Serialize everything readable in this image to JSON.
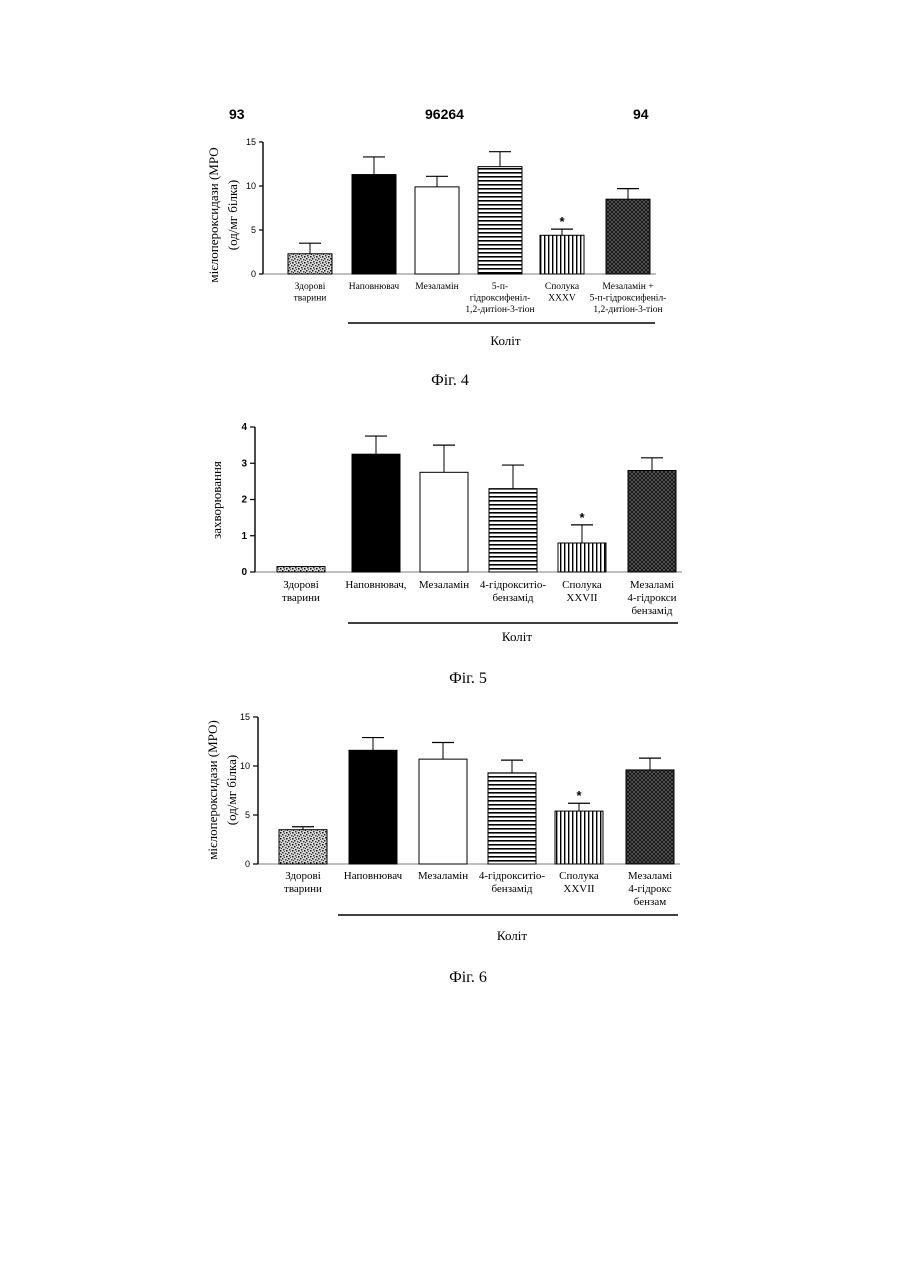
{
  "header": {
    "left": "93",
    "center": "96264",
    "right": "94"
  },
  "chart_data": [
    {
      "type": "bar",
      "caption": "Фіг. 4",
      "ylabel_lines": [
        "мієлопероксидази (МРО",
        "(од/мг білка)"
      ],
      "yticks": [
        "0",
        "5",
        "10",
        "15"
      ],
      "ylim": [
        0,
        15
      ],
      "group_label": "Коліт",
      "categories": [
        {
          "lines": [
            "Здорові",
            "тварини"
          ]
        },
        {
          "lines": [
            "Наповнювач"
          ]
        },
        {
          "lines": [
            "Мезаламін"
          ]
        },
        {
          "lines": [
            "5-п-",
            "гідроксифеніл-",
            "1,2-дитіон-3-тіон"
          ]
        },
        {
          "lines": [
            "Сполука",
            "XXXV"
          ]
        },
        {
          "lines": [
            "Мезаламін +",
            "5-п-гідроксифеніл-",
            "1,2-дитіон-3-тіон"
          ]
        }
      ],
      "values": [
        2.3,
        11.3,
        9.9,
        12.2,
        4.4,
        8.5
      ],
      "errors": [
        1.2,
        2.0,
        1.2,
        1.7,
        0.7,
        1.2
      ],
      "significant": [
        false,
        false,
        false,
        false,
        true,
        false
      ],
      "significance_marker": "*",
      "fills": [
        "speckle",
        "black",
        "white",
        "hstripe",
        "vstripe",
        "crosshatch"
      ]
    },
    {
      "type": "bar",
      "caption": "Фіг. 5",
      "ylabel_lines": [
        "захворювання"
      ],
      "yticks": [
        "0",
        "1",
        "2",
        "3",
        "4"
      ],
      "ylim": [
        0,
        4
      ],
      "group_label": "Коліт",
      "categories": [
        {
          "lines": [
            "Здорові",
            "тварини"
          ]
        },
        {
          "lines": [
            "Наповнювач,"
          ]
        },
        {
          "lines": [
            "Мезаламін"
          ]
        },
        {
          "lines": [
            "4-гідрокситіо-",
            "бензамід"
          ]
        },
        {
          "lines": [
            "Сполука",
            "XXVII"
          ]
        },
        {
          "lines": [
            "Мезаламі",
            "4-гідрокси",
            "бензамід"
          ]
        }
      ],
      "values": [
        0.15,
        3.25,
        2.75,
        2.3,
        0.8,
        2.8
      ],
      "errors": [
        0.0,
        0.5,
        0.75,
        0.65,
        0.5,
        0.35
      ],
      "significant": [
        false,
        false,
        false,
        false,
        true,
        false
      ],
      "significance_marker": "*",
      "fills": [
        "speckle",
        "black",
        "white",
        "hstripe",
        "vstripe",
        "crosshatch"
      ]
    },
    {
      "type": "bar",
      "caption": "Фіг. 6",
      "ylabel_lines": [
        "мієлопероксидази (МРО)",
        "(од/мг білка)"
      ],
      "yticks": [
        "0",
        "5",
        "10",
        "15"
      ],
      "ylim": [
        0,
        15
      ],
      "group_label": "Коліт",
      "categories": [
        {
          "lines": [
            "Здорові",
            "тварини"
          ]
        },
        {
          "lines": [
            "Наповнювач"
          ]
        },
        {
          "lines": [
            "Мезаламін"
          ]
        },
        {
          "lines": [
            "4-гідрокситіо-",
            "бензамід"
          ]
        },
        {
          "lines": [
            "Сполука",
            "XXVII"
          ]
        },
        {
          "lines": [
            "Мезаламі",
            "4-гідрокс",
            "бензам"
          ]
        }
      ],
      "values": [
        3.5,
        11.6,
        10.7,
        9.3,
        5.4,
        9.6
      ],
      "errors": [
        0.3,
        1.3,
        1.7,
        1.3,
        0.8,
        1.2
      ],
      "significant": [
        false,
        false,
        false,
        false,
        true,
        false
      ],
      "significance_marker": "*",
      "fills": [
        "speckle",
        "black",
        "white",
        "hstripe",
        "vstripe",
        "crosshatch"
      ]
    }
  ]
}
